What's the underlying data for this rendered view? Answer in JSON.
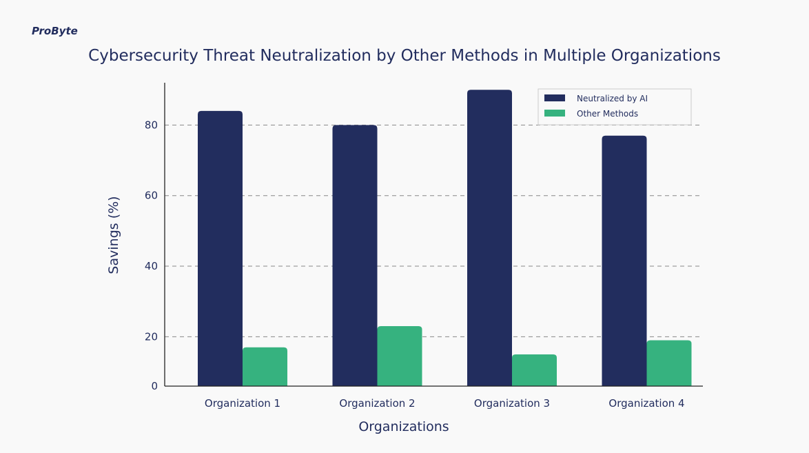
{
  "logo": "ProByte",
  "chart_data": {
    "type": "bar",
    "title": "Cybersecurity Threat Neutralization by Other Methods in Multiple Organizations",
    "xlabel": "Organizations",
    "ylabel": "Savings (%)",
    "categories": [
      "Organization 1",
      "Organization 2",
      "Organization 3",
      "Organization 4"
    ],
    "series": [
      {
        "name": "Neutralized by AI",
        "color": "#222d5e",
        "values": [
          84,
          80,
          90,
          77
        ]
      },
      {
        "name": "Other Methods",
        "color": "#36b27f",
        "values": [
          17,
          23,
          15,
          19
        ]
      }
    ],
    "yticks": [
      0,
      20,
      40,
      60,
      80
    ],
    "ylim": [
      6,
      92
    ],
    "grid": true,
    "legend": "top-right"
  }
}
